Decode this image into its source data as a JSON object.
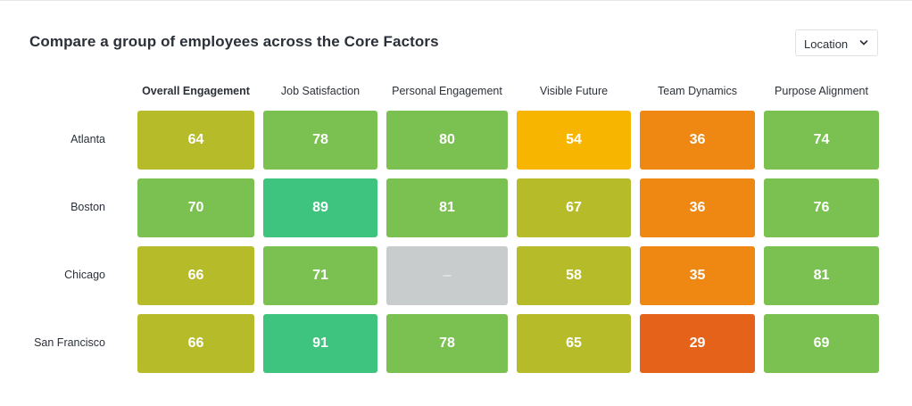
{
  "header": {
    "title": "Compare a group of employees across the Core Factors"
  },
  "filter": {
    "selected": "Location",
    "icon": "chevron-down-icon"
  },
  "colors": {
    "green_dark": "#3ec47f",
    "green": "#7bc152",
    "olive": "#b6bb2a",
    "yellow": "#f7b500",
    "orange": "#ee8812",
    "orange_dark": "#e5621a",
    "empty": "#c8cccd"
  },
  "chart_data": {
    "type": "heatmap",
    "title": "Compare a group of employees across the Core Factors",
    "columns": [
      "Overall Engagement",
      "Job Satisfaction",
      "Personal Engagement",
      "Visible Future",
      "Team Dynamics",
      "Purpose Alignment"
    ],
    "rows": [
      "Atlanta",
      "Boston",
      "Chicago",
      "San Francisco"
    ],
    "values": [
      [
        64,
        78,
        80,
        54,
        36,
        74
      ],
      [
        70,
        89,
        81,
        67,
        36,
        76
      ],
      [
        66,
        71,
        null,
        58,
        35,
        81
      ],
      [
        66,
        91,
        78,
        65,
        29,
        69
      ]
    ],
    "missing_label": "–"
  }
}
